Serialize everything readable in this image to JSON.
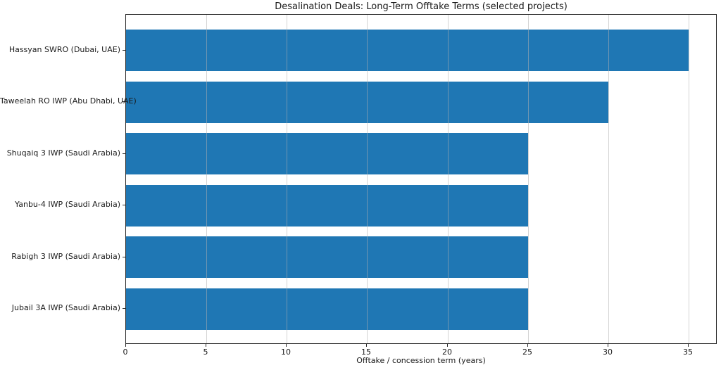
{
  "chart_data": {
    "type": "bar",
    "orientation": "horizontal",
    "title": "Desalination Deals: Long-Term Offtake Terms (selected projects)",
    "xlabel": "Offtake / concession term (years)",
    "categories": [
      "Hassyan SWRO (Dubai, UAE)",
      "Taweelah RO IWP (Abu Dhabi, UAE)",
      "Shuqaiq 3 IWP (Saudi Arabia)",
      "Yanbu-4 IWP (Saudi Arabia)",
      "Rabigh 3 IWP (Saudi Arabia)",
      "Jubail 3A IWP (Saudi Arabia)"
    ],
    "values": [
      35,
      30,
      25,
      25,
      25,
      25
    ],
    "xticks": [
      0,
      5,
      10,
      15,
      20,
      25,
      30,
      35
    ],
    "xlim": [
      0,
      36.8
    ],
    "bar_color": "#1f77b4",
    "grid": true,
    "grid_axis": "x",
    "legend": "none"
  }
}
